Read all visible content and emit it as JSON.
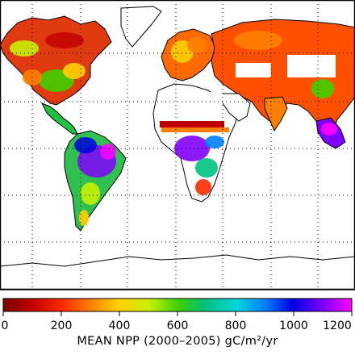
{
  "legend": {
    "title": "MEAN NPP (2000–2005) gC/m²/yr",
    "ticks": [
      "0",
      "200",
      "400",
      "600",
      "800",
      "1000",
      "1200"
    ]
  },
  "colors": {
    "ocean": "#ffffff",
    "no_data": "#ffffff",
    "coastline": "#000000",
    "gridline": "#000000",
    "scale": [
      "#7a0000",
      "#c00000",
      "#ff2a00",
      "#ff8000",
      "#ffd000",
      "#c8f000",
      "#40d000",
      "#00c080",
      "#00d8d8",
      "#0080ff",
      "#0000e0",
      "#8000ff",
      "#ff00ff"
    ]
  },
  "map": {
    "projection": "equirectangular",
    "gridlines": "dotted",
    "variable": "net primary production"
  }
}
